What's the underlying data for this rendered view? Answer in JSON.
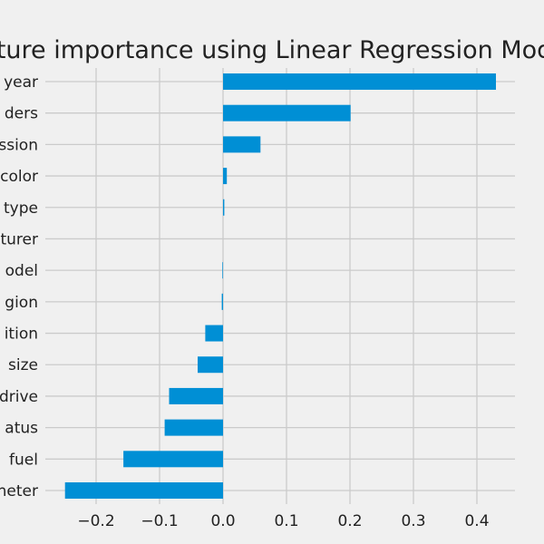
{
  "chart_data": {
    "type": "bar",
    "orientation": "horizontal",
    "title": "Feature importance using Linear Regression Model",
    "xlabel": "",
    "ylabel": "",
    "categories": [
      "year",
      "cylinders",
      "transmission",
      "paint_color",
      "type",
      "manufacturer",
      "model",
      "region",
      "condition",
      "size",
      "drive",
      "title_status",
      "fuel",
      "odometer"
    ],
    "category_labels_visible": [
      "year",
      "ders",
      "ssion",
      "color",
      "type",
      "turer",
      "odel",
      "gion",
      "ition",
      "size",
      "drive",
      "atus",
      "fuel",
      "neter"
    ],
    "values": [
      0.43,
      0.201,
      0.059,
      0.006,
      0.002,
      0.0,
      -0.001,
      -0.002,
      -0.028,
      -0.04,
      -0.085,
      -0.092,
      -0.157,
      -0.249
    ],
    "xlim": [
      -0.28,
      0.46
    ],
    "xticks": [
      -0.2,
      -0.1,
      0.0,
      0.1,
      0.2,
      0.3,
      0.4
    ],
    "xtick_labels": [
      "−0.2",
      "−0.1",
      "0.0",
      "0.1",
      "0.2",
      "0.3",
      "0.4"
    ],
    "grid": true,
    "colors": {
      "bar": "#008fd5",
      "background": "#f0f0f0",
      "grid": "#cbcbcb",
      "text": "#222222"
    }
  }
}
